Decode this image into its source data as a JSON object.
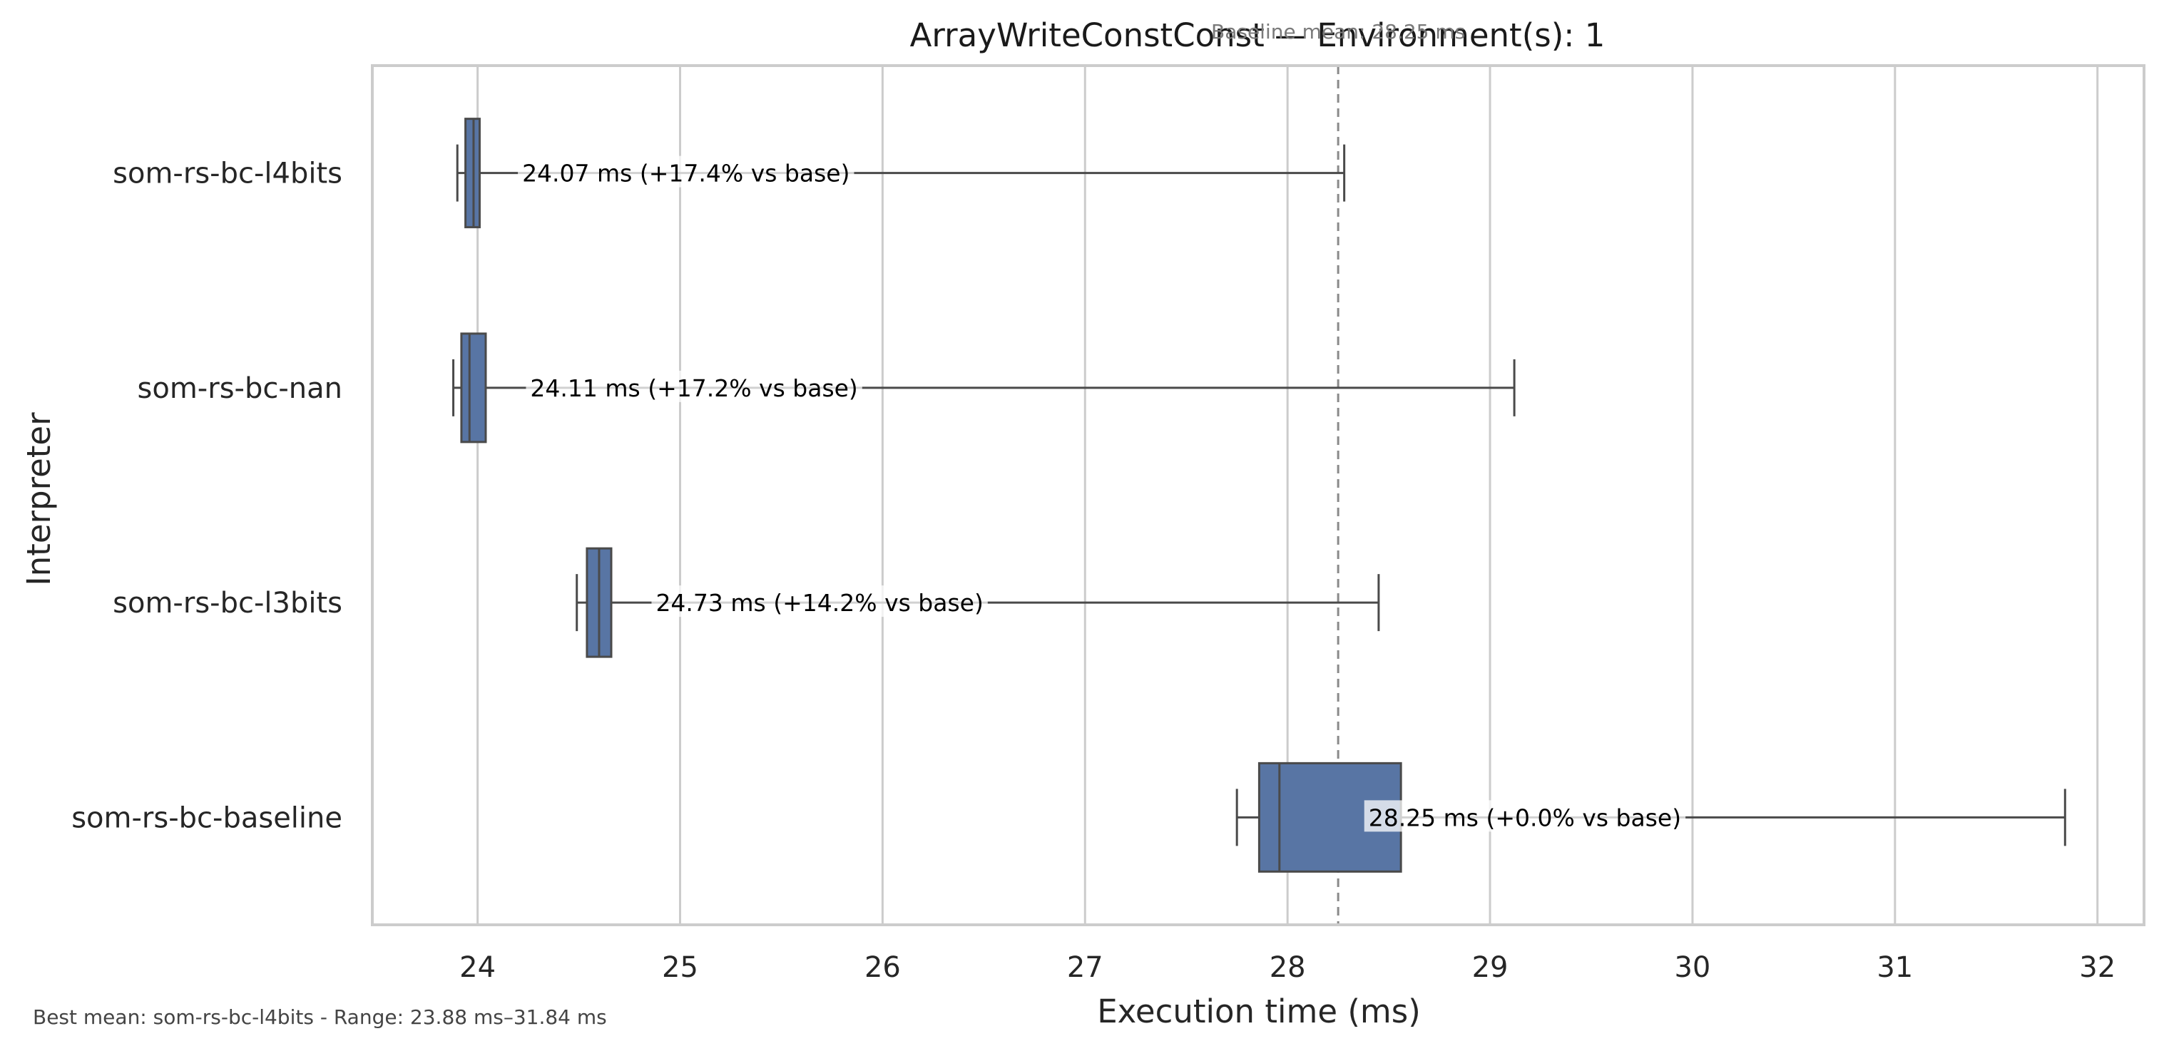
{
  "chart_data": {
    "type": "box",
    "title": "ArrayWriteConstConst — Environment(s): 1",
    "xlabel": "Execution time (ms)",
    "ylabel": "Interpreter",
    "xlim": [
      23.48,
      32.23
    ],
    "xticks": [
      24,
      25,
      26,
      27,
      28,
      29,
      30,
      31,
      32
    ],
    "grid": "vertical",
    "baseline": {
      "value": 28.25,
      "label": "Baseline mean: 28.25 ms"
    },
    "box_color": "#5875a4",
    "line_color": "#4a4a4a",
    "series": [
      {
        "name": "som-rs-bc-l4bits",
        "whisker_low": 23.9,
        "q1": 23.94,
        "median": 23.98,
        "q3": 24.01,
        "whisker_high": 28.28,
        "annotation": "24.07 ms  (+17.4% vs base)",
        "annotation_x": 24.22
      },
      {
        "name": "som-rs-bc-nan",
        "whisker_low": 23.88,
        "q1": 23.92,
        "median": 23.96,
        "q3": 24.04,
        "whisker_high": 29.12,
        "annotation": "24.11 ms  (+17.2% vs base)",
        "annotation_x": 24.26
      },
      {
        "name": "som-rs-bc-l3bits",
        "whisker_low": 24.49,
        "q1": 24.54,
        "median": 24.6,
        "q3": 24.66,
        "whisker_high": 28.45,
        "annotation": "24.73 ms  (+14.2% vs base)",
        "annotation_x": 24.88
      },
      {
        "name": "som-rs-bc-baseline",
        "whisker_low": 27.75,
        "q1": 27.86,
        "median": 27.96,
        "q3": 28.56,
        "whisker_high": 31.84,
        "annotation": "28.25 ms  (+0.0% vs base)",
        "annotation_x": 28.4
      }
    ]
  },
  "footer": "Best mean: som-rs-bc-l4bits - Range: 23.88 ms–31.84 ms"
}
